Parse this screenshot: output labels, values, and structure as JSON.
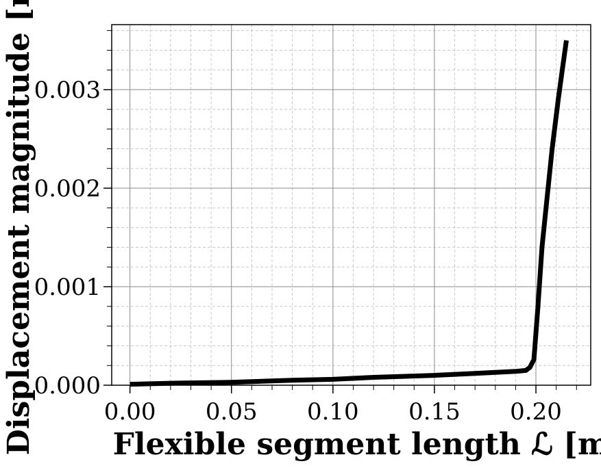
{
  "chart_data": {
    "type": "line",
    "title": "",
    "xlabel": "Flexible segment length ℒ [m]",
    "ylabel": "Displacement magnitude [m]",
    "xlim": [
      -0.009,
      0.227
    ],
    "ylim": [
      0,
      0.00366
    ],
    "x_ticks": [
      0.0,
      0.05,
      0.1,
      0.15,
      0.2
    ],
    "x_tick_labels": [
      "0.00",
      "0.05",
      "0.10",
      "0.15",
      "0.20"
    ],
    "y_ticks": [
      0.0,
      0.001,
      0.002,
      0.003
    ],
    "y_tick_labels": [
      "0.000",
      "0.001",
      "0.002",
      "0.003"
    ],
    "grid": {
      "major": true,
      "minor": true
    },
    "series": [
      {
        "color": "#000000",
        "x": [
          0.0,
          0.02,
          0.05,
          0.08,
          0.1,
          0.12,
          0.15,
          0.17,
          0.18,
          0.19,
          0.195,
          0.197,
          0.199,
          0.201,
          0.203,
          0.205,
          0.208,
          0.211,
          0.213,
          0.215
        ],
        "y": [
          1e-05,
          2e-05,
          3e-05,
          5e-05,
          6e-05,
          8e-05,
          0.0001,
          0.00012,
          0.00013,
          0.00014,
          0.00015,
          0.00018,
          0.00026,
          0.0008,
          0.0014,
          0.0018,
          0.0024,
          0.0029,
          0.0032,
          0.0035
        ]
      }
    ]
  }
}
